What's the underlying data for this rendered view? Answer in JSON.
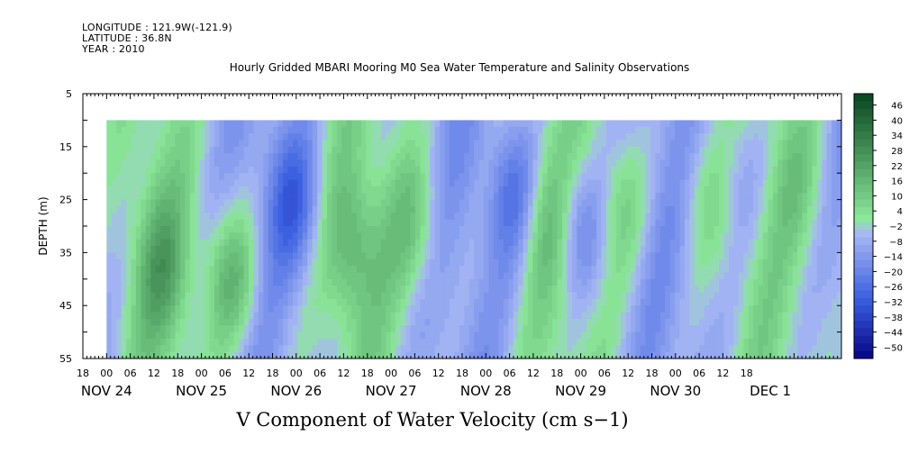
{
  "header": {
    "longitude": "LONGITUDE : 121.9W(-121.9)",
    "latitude": "LATITUDE : 36.8N",
    "year": "YEAR : 2010"
  },
  "chart_data": {
    "type": "heatmap",
    "title": "Hourly Gridded MBARI Mooring M0 Sea Water Temperature and Salinity Observations",
    "xlabel": "V Component of Water Velocity (cm s−1)",
    "ylabel": "DEPTH (m)",
    "ylim": [
      55,
      5
    ],
    "y_ticks": [
      5,
      15,
      25,
      35,
      45,
      55
    ],
    "data_depth_range": [
      10,
      55
    ],
    "x_range_hours": [
      -6,
      186
    ],
    "x_tick_labels": [
      "18",
      "00",
      "06",
      "12",
      "18",
      "00",
      "06",
      "12",
      "18",
      "00",
      "06",
      "12",
      "18",
      "00",
      "06",
      "12",
      "18",
      "00",
      "06",
      "12",
      "18",
      "00",
      "06",
      "12",
      "18",
      "00",
      "06",
      "12",
      "18"
    ],
    "date_labels": [
      {
        "label": "NOV 24",
        "hour": 0
      },
      {
        "label": "NOV 25",
        "hour": 24
      },
      {
        "label": "NOV 26",
        "hour": 48
      },
      {
        "label": "NOV 27",
        "hour": 72
      },
      {
        "label": "NOV 28",
        "hour": 96
      },
      {
        "label": "NOV 29",
        "hour": 120
      },
      {
        "label": "NOV 30",
        "hour": 144
      },
      {
        "label": "DEC  1",
        "hour": 168
      }
    ],
    "colorbar": {
      "labels": [
        "46",
        "40",
        "34",
        "28",
        "22",
        "16",
        "10",
        "4",
        "−2",
        "−8",
        "−14",
        "−20",
        "−26",
        "−32",
        "−38",
        "−44",
        "−50"
      ],
      "levels_top_to_bottom": [
        52,
        49,
        46,
        43,
        40,
        37,
        34,
        31,
        28,
        25,
        22,
        19,
        16,
        13,
        10,
        7,
        4,
        1,
        -2,
        -5,
        -8,
        -11,
        -14,
        -17,
        -20,
        -23,
        -26,
        -29,
        -32,
        -35,
        -38,
        -41,
        -44,
        -47,
        -50
      ],
      "colors": {
        "strong_negative": "#0a0a8c",
        "negative": "#3a5fe0",
        "near_zero": "#a8b8f4",
        "positive": "#8ce89a",
        "strong_positive": "#0c4a22"
      }
    },
    "grid": false
  }
}
